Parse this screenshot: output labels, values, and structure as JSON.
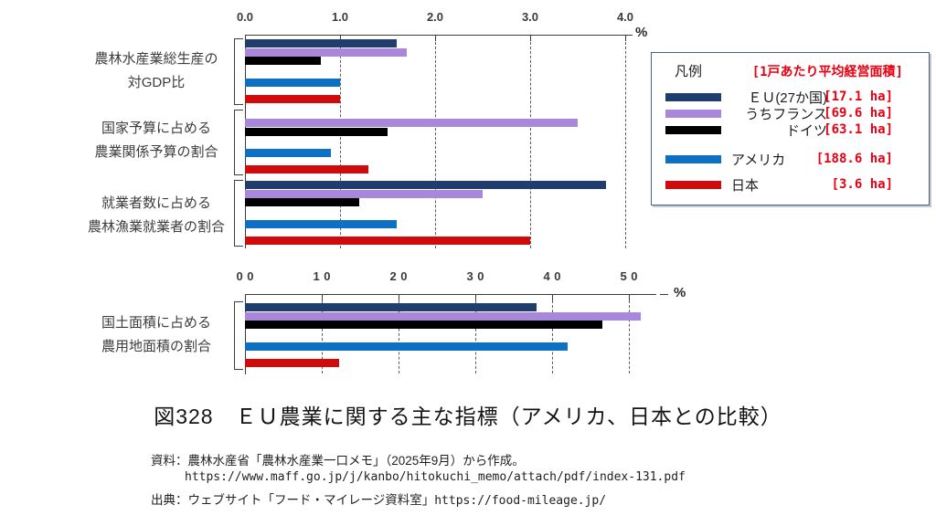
{
  "title": "図328　ＥＵ農業に関する主な指標（アメリカ、日本との比較）",
  "source": {
    "line1": "資料：農林水産省「農林水産業一口メモ」（2025年9月）から作成。",
    "line2": "https://www.maff.go.jp/j/kanbo/hitokuchi_memo/attach/pdf/index-131.pdf",
    "line3_prefix": "出典：ウェブサイト「フード・マイレージ資料室」",
    "line3_url": "https://food-mileage.jp/"
  },
  "legend": {
    "header": "凡例",
    "subheader": "[1戸あたり平均経営面積]",
    "entries": [
      {
        "label": "ＥＵ(27か国)",
        "value": "[17.1 ha]",
        "color": "#1f3e6d"
      },
      {
        "label": "うちフランス",
        "value": "[69.6 ha]",
        "color": "#a988dc"
      },
      {
        "label": "ドイツ",
        "value": "[63.1 ha]",
        "color": "#000000"
      },
      {
        "label": "アメリカ",
        "value": "[188.6 ha]",
        "color": "#0d70c4"
      },
      {
        "label": "日本",
        "value": "[3.6 ha]",
        "color": "#d00b0b"
      }
    ]
  },
  "chart_data": [
    {
      "type": "bar",
      "orientation": "horizontal",
      "unit": "%",
      "xlim": [
        0,
        4.0
      ],
      "x_ticks": [
        "0.0",
        "1.0",
        "2.0",
        "3.0",
        "4.0"
      ],
      "grid": "dashed-vertical",
      "categories": [
        "農林水産業総生産の対GDP比",
        "国家予算に占める農業関係予算の割合",
        "就業者数に占める農林漁業就業者の割合"
      ],
      "category_lines": [
        [
          "農林水産業総生産の",
          "対GDP比"
        ],
        [
          "国家予算に占める",
          "農業関係予算の割合"
        ],
        [
          "就業者数に占める",
          "農林漁業就業者の割合"
        ]
      ],
      "series": [
        {
          "id": "eu",
          "name": "ＥＵ(27か国)",
          "color": "#1f3e6d",
          "values": [
            1.6,
            null,
            3.8
          ]
        },
        {
          "id": "france",
          "name": "うちフランス",
          "color": "#a988dc",
          "values": [
            1.7,
            3.5,
            2.5
          ]
        },
        {
          "id": "germany",
          "name": "ドイツ",
          "color": "#000000",
          "values": [
            0.8,
            1.5,
            1.2
          ]
        },
        {
          "id": "usa",
          "name": "アメリカ",
          "color": "#0d70c4",
          "values": [
            1.0,
            0.9,
            1.6
          ]
        },
        {
          "id": "japan",
          "name": "日本",
          "color": "#d00b0b",
          "values": [
            1.0,
            1.3,
            3.0
          ]
        }
      ]
    },
    {
      "type": "bar",
      "orientation": "horizontal",
      "unit": "%",
      "xlim": [
        0,
        50
      ],
      "x_ticks": [
        "00",
        "10",
        "20",
        "30",
        "40",
        "50"
      ],
      "grid": "dashed-vertical",
      "categories": [
        "国土面積に占める農用地面積の割合"
      ],
      "category_lines": [
        [
          "国土面積に占める",
          "農用地面積の割合"
        ]
      ],
      "series": [
        {
          "id": "eu",
          "name": "ＥＵ(27か国)",
          "color": "#1f3e6d",
          "values": [
            38.0
          ]
        },
        {
          "id": "france",
          "name": "うちフランス",
          "color": "#a988dc",
          "values": [
            51.5
          ]
        },
        {
          "id": "germany",
          "name": "ドイツ",
          "color": "#000000",
          "values": [
            46.5
          ]
        },
        {
          "id": "usa",
          "name": "アメリカ",
          "color": "#0d70c4",
          "values": [
            42.0
          ]
        },
        {
          "id": "japan",
          "name": "日本",
          "color": "#d00b0b",
          "values": [
            12.3
          ]
        }
      ]
    }
  ]
}
